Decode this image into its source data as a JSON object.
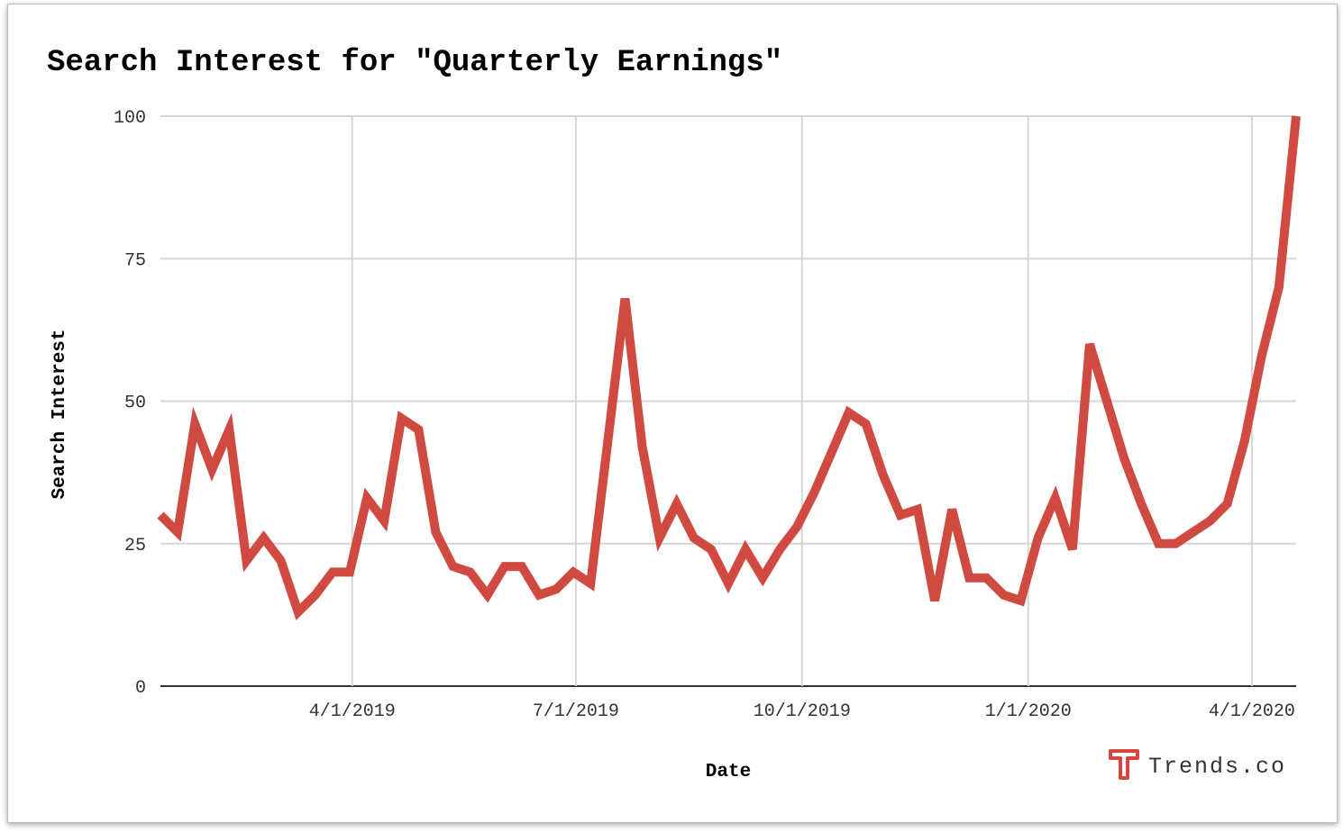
{
  "chart_data": {
    "type": "line",
    "title": "Search Interest for \"Quarterly Earnings\"",
    "x_label": "Date",
    "y_label": "Search Interest",
    "source": "Trends.co",
    "color": "#d14a42",
    "grid": true,
    "x": [
      "2019-01-13",
      "2019-01-20",
      "2019-01-27",
      "2019-02-03",
      "2019-02-10",
      "2019-02-17",
      "2019-02-24",
      "2019-03-03",
      "2019-03-10",
      "2019-03-17",
      "2019-03-24",
      "2019-03-31",
      "2019-04-07",
      "2019-04-14",
      "2019-04-21",
      "2019-04-28",
      "2019-05-05",
      "2019-05-12",
      "2019-05-19",
      "2019-05-26",
      "2019-06-02",
      "2019-06-09",
      "2019-06-16",
      "2019-06-23",
      "2019-06-30",
      "2019-07-07",
      "2019-07-14",
      "2019-07-21",
      "2019-07-28",
      "2019-08-04",
      "2019-08-11",
      "2019-08-18",
      "2019-08-25",
      "2019-09-01",
      "2019-09-08",
      "2019-09-15",
      "2019-09-22",
      "2019-09-29",
      "2019-10-06",
      "2019-10-13",
      "2019-10-20",
      "2019-10-27",
      "2019-11-03",
      "2019-11-10",
      "2019-11-17",
      "2019-11-24",
      "2019-12-01",
      "2019-12-08",
      "2019-12-15",
      "2019-12-22",
      "2019-12-29",
      "2020-01-05",
      "2020-01-12",
      "2020-01-19",
      "2020-01-26",
      "2020-02-02",
      "2020-02-09",
      "2020-02-16",
      "2020-02-23",
      "2020-03-01",
      "2020-03-08",
      "2020-03-15",
      "2020-03-22",
      "2020-03-29",
      "2020-04-05",
      "2020-04-12",
      "2020-04-19"
    ],
    "values": [
      30,
      27,
      46,
      38,
      45,
      22,
      26,
      22,
      13,
      16,
      20,
      20,
      33,
      29,
      47,
      45,
      27,
      21,
      20,
      16,
      21,
      21,
      16,
      17,
      20,
      18,
      43,
      68,
      42,
      26,
      32,
      26,
      24,
      18,
      24,
      19,
      24,
      28,
      34,
      41,
      48,
      46,
      37,
      30,
      31,
      15,
      31,
      19,
      19,
      16,
      15,
      26,
      33,
      24,
      60,
      50,
      40,
      32,
      25,
      25,
      27,
      29,
      32,
      43,
      58,
      70,
      100
    ],
    "xlim": [
      "2019-01-13",
      "2020-04-19"
    ],
    "xticks": [
      {
        "value": "2019-04-01",
        "label": "4/1/2019"
      },
      {
        "value": "2019-07-01",
        "label": "7/1/2019"
      },
      {
        "value": "2019-10-01",
        "label": "10/1/2019"
      },
      {
        "value": "2020-01-01",
        "label": "1/1/2020"
      },
      {
        "value": "2020-04-01",
        "label": "4/1/2020"
      }
    ],
    "ylim": [
      0,
      100
    ],
    "yticks": [
      0,
      25,
      50,
      75,
      100
    ]
  }
}
